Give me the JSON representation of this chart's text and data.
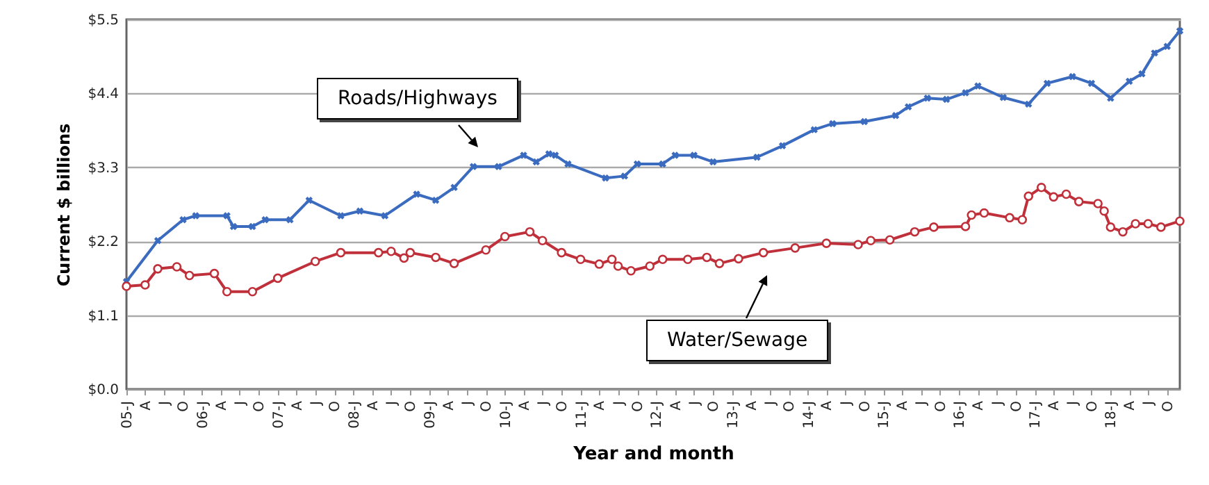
{
  "chart_data": {
    "type": "line",
    "xlabel": "Year and month",
    "ylabel": "Current $ billions",
    "series": [
      {
        "name": "Roads/Highways",
        "color": "#3a6bbf",
        "marker": "cross",
        "x": [
          "2005-01",
          "2005-06",
          "2005-10",
          "2005-12",
          "2006-05",
          "2006-06",
          "2006-09",
          "2006-11",
          "2007-03",
          "2007-06",
          "2007-11",
          "2008-02",
          "2008-06",
          "2008-11",
          "2009-02",
          "2009-05",
          "2009-08",
          "2009-12",
          "2010-04",
          "2010-06",
          "2010-08",
          "2010-09",
          "2010-11",
          "2011-05",
          "2011-08",
          "2011-10",
          "2012-02",
          "2012-04",
          "2012-07",
          "2012-10",
          "2013-05",
          "2013-09",
          "2014-02",
          "2014-05",
          "2014-10",
          "2015-03",
          "2015-05",
          "2015-08",
          "2015-11",
          "2016-02",
          "2016-04",
          "2016-08",
          "2016-12",
          "2017-03",
          "2017-07",
          "2017-10",
          "2018-01",
          "2018-04",
          "2018-06",
          "2018-08",
          "2018-10",
          "2018-12"
        ],
        "values": [
          1.6,
          2.21,
          2.52,
          2.58,
          2.58,
          2.42,
          2.42,
          2.52,
          2.52,
          2.81,
          2.58,
          2.65,
          2.58,
          2.9,
          2.81,
          3.0,
          3.31,
          3.31,
          3.48,
          3.38,
          3.5,
          3.48,
          3.35,
          3.14,
          3.17,
          3.35,
          3.35,
          3.48,
          3.48,
          3.38,
          3.45,
          3.62,
          3.86,
          3.95,
          3.98,
          4.07,
          4.2,
          4.33,
          4.31,
          4.41,
          4.51,
          4.34,
          4.24,
          4.55,
          4.65,
          4.55,
          4.33,
          4.58,
          4.69,
          5.0,
          5.1,
          5.33
        ]
      },
      {
        "name": "Water/Sewage",
        "color": "#c0303a",
        "marker": "circle",
        "x": [
          "2005-01",
          "2005-04",
          "2005-06",
          "2005-09",
          "2005-11",
          "2006-03",
          "2006-05",
          "2006-09",
          "2007-01",
          "2007-07",
          "2007-11",
          "2008-05",
          "2008-07",
          "2008-09",
          "2008-10",
          "2009-02",
          "2009-05",
          "2009-10",
          "2010-01",
          "2010-05",
          "2010-07",
          "2010-10",
          "2011-01",
          "2011-04",
          "2011-06",
          "2011-07",
          "2011-09",
          "2011-12",
          "2012-02",
          "2012-06",
          "2012-09",
          "2012-11",
          "2013-02",
          "2013-06",
          "2013-11",
          "2014-04",
          "2014-09",
          "2014-11",
          "2015-02",
          "2015-06",
          "2015-09",
          "2016-02",
          "2016-03",
          "2016-05",
          "2016-09",
          "2016-11",
          "2016-12",
          "2017-02",
          "2017-04",
          "2017-06",
          "2017-08",
          "2017-11",
          "2017-12",
          "2018-01",
          "2018-03",
          "2018-05",
          "2018-07",
          "2018-09",
          "2018-12"
        ],
        "values": [
          1.53,
          1.55,
          1.79,
          1.82,
          1.69,
          1.72,
          1.45,
          1.45,
          1.65,
          1.9,
          2.03,
          2.03,
          2.05,
          1.95,
          2.03,
          1.96,
          1.87,
          2.07,
          2.27,
          2.34,
          2.21,
          2.03,
          1.93,
          1.86,
          1.93,
          1.83,
          1.76,
          1.83,
          1.93,
          1.93,
          1.96,
          1.87,
          1.94,
          2.03,
          2.1,
          2.17,
          2.15,
          2.21,
          2.22,
          2.34,
          2.41,
          2.42,
          2.59,
          2.62,
          2.55,
          2.52,
          2.87,
          3.0,
          2.86,
          2.9,
          2.79,
          2.76,
          2.65,
          2.41,
          2.34,
          2.46,
          2.46,
          2.41,
          2.5
        ]
      }
    ],
    "xlim": [
      "2005-01",
      "2018-12"
    ],
    "xticks": [
      {
        "value": "2005-01",
        "label": "05-J"
      },
      {
        "value": "2005-04",
        "label": "A"
      },
      {
        "value": "2005-07",
        "label": "J"
      },
      {
        "value": "2005-10",
        "label": "O"
      },
      {
        "value": "2006-01",
        "label": "06-J"
      },
      {
        "value": "2006-04",
        "label": "A"
      },
      {
        "value": "2006-07",
        "label": "J"
      },
      {
        "value": "2006-10",
        "label": "O"
      },
      {
        "value": "2007-01",
        "label": "07-J"
      },
      {
        "value": "2007-04",
        "label": "A"
      },
      {
        "value": "2007-07",
        "label": "J"
      },
      {
        "value": "2007-10",
        "label": "O"
      },
      {
        "value": "2008-01",
        "label": "08-J"
      },
      {
        "value": "2008-04",
        "label": "A"
      },
      {
        "value": "2008-07",
        "label": "J"
      },
      {
        "value": "2008-10",
        "label": "O"
      },
      {
        "value": "2009-01",
        "label": "09-J"
      },
      {
        "value": "2009-04",
        "label": "A"
      },
      {
        "value": "2009-07",
        "label": "J"
      },
      {
        "value": "2009-10",
        "label": "O"
      },
      {
        "value": "2010-01",
        "label": "10-J"
      },
      {
        "value": "2010-04",
        "label": "A"
      },
      {
        "value": "2010-07",
        "label": "J"
      },
      {
        "value": "2010-10",
        "label": "O"
      },
      {
        "value": "2011-01",
        "label": "11-J"
      },
      {
        "value": "2011-04",
        "label": "A"
      },
      {
        "value": "2011-07",
        "label": "J"
      },
      {
        "value": "2011-10",
        "label": "O"
      },
      {
        "value": "2012-01",
        "label": "12-J"
      },
      {
        "value": "2012-04",
        "label": "A"
      },
      {
        "value": "2012-07",
        "label": "J"
      },
      {
        "value": "2012-10",
        "label": "O"
      },
      {
        "value": "2013-01",
        "label": "13-J"
      },
      {
        "value": "2013-04",
        "label": "A"
      },
      {
        "value": "2013-07",
        "label": "J"
      },
      {
        "value": "2013-10",
        "label": "O"
      },
      {
        "value": "2014-01",
        "label": "14-J"
      },
      {
        "value": "2014-04",
        "label": "A"
      },
      {
        "value": "2014-07",
        "label": "J"
      },
      {
        "value": "2014-10",
        "label": "O"
      },
      {
        "value": "2015-01",
        "label": "15-J"
      },
      {
        "value": "2015-04",
        "label": "A"
      },
      {
        "value": "2015-07",
        "label": "J"
      },
      {
        "value": "2015-10",
        "label": "O"
      },
      {
        "value": "2016-01",
        "label": "16-J"
      },
      {
        "value": "2016-04",
        "label": "A"
      },
      {
        "value": "2016-07",
        "label": "J"
      },
      {
        "value": "2016-10",
        "label": "O"
      },
      {
        "value": "2017-01",
        "label": "17-J"
      },
      {
        "value": "2017-04",
        "label": "A"
      },
      {
        "value": "2017-07",
        "label": "J"
      },
      {
        "value": "2017-10",
        "label": "O"
      },
      {
        "value": "2018-01",
        "label": "18-J"
      },
      {
        "value": "2018-04",
        "label": "A"
      },
      {
        "value": "2018-07",
        "label": "J"
      },
      {
        "value": "2018-10",
        "label": "O"
      }
    ],
    "ylim": [
      0,
      5.5
    ],
    "yticks": [
      {
        "value": 0,
        "label": "$0.0"
      },
      {
        "value": 1.1,
        "label": "$1.1"
      },
      {
        "value": 2.2,
        "label": "$2.2"
      },
      {
        "value": 3.3,
        "label": "$3.3"
      },
      {
        "value": 4.4,
        "label": "$4.4"
      },
      {
        "value": 5.5,
        "label": "$5.5"
      }
    ],
    "grid": "y",
    "line_style": "solid"
  }
}
